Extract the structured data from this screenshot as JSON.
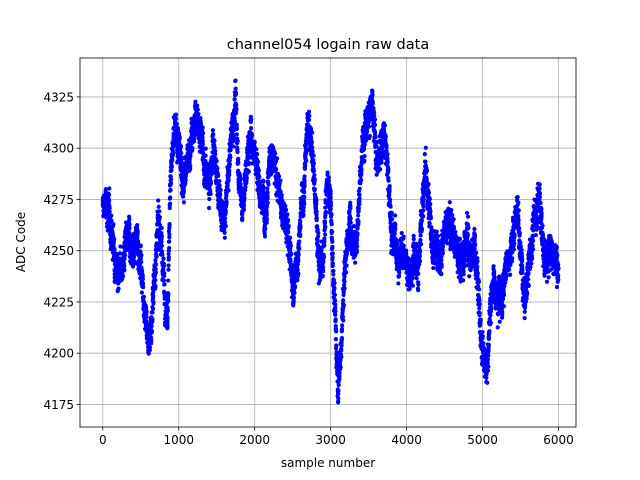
{
  "chart_data": {
    "type": "scatter",
    "title": "channel054 logain raw data",
    "xlabel": "sample number",
    "ylabel": "ADC Code",
    "xlim": [
      -300,
      6230
    ],
    "ylim": [
      4164,
      4344
    ],
    "xticks": [
      0,
      1000,
      2000,
      3000,
      4000,
      5000,
      6000
    ],
    "yticks": [
      4175,
      4200,
      4225,
      4250,
      4275,
      4300,
      4325
    ],
    "grid": true,
    "n_points": 6000,
    "marker_color": "#0000ff",
    "trend": [
      [
        0,
        4270
      ],
      [
        50,
        4272
      ],
      [
        100,
        4263
      ],
      [
        150,
        4250
      ],
      [
        200,
        4243
      ],
      [
        250,
        4240
      ],
      [
        300,
        4250
      ],
      [
        350,
        4255
      ],
      [
        400,
        4250
      ],
      [
        450,
        4255
      ],
      [
        500,
        4245
      ],
      [
        550,
        4225
      ],
      [
        600,
        4205
      ],
      [
        650,
        4218
      ],
      [
        700,
        4250
      ],
      [
        750,
        4265
      ],
      [
        800,
        4238
      ],
      [
        850,
        4220
      ],
      [
        900,
        4295
      ],
      [
        950,
        4305
      ],
      [
        1000,
        4300
      ],
      [
        1050,
        4285
      ],
      [
        1100,
        4288
      ],
      [
        1150,
        4300
      ],
      [
        1200,
        4310
      ],
      [
        1250,
        4318
      ],
      [
        1300,
        4302
      ],
      [
        1350,
        4290
      ],
      [
        1400,
        4282
      ],
      [
        1450,
        4300
      ],
      [
        1500,
        4288
      ],
      [
        1550,
        4270
      ],
      [
        1600,
        4262
      ],
      [
        1650,
        4285
      ],
      [
        1700,
        4310
      ],
      [
        1750,
        4320
      ],
      [
        1800,
        4282
      ],
      [
        1850,
        4272
      ],
      [
        1900,
        4295
      ],
      [
        1950,
        4305
      ],
      [
        2000,
        4300
      ],
      [
        2050,
        4285
      ],
      [
        2100,
        4275
      ],
      [
        2150,
        4272
      ],
      [
        2200,
        4298
      ],
      [
        2250,
        4290
      ],
      [
        2300,
        4285
      ],
      [
        2350,
        4270
      ],
      [
        2400,
        4265
      ],
      [
        2450,
        4255
      ],
      [
        2500,
        4232
      ],
      [
        2550,
        4240
      ],
      [
        2600,
        4262
      ],
      [
        2650,
        4282
      ],
      [
        2700,
        4316
      ],
      [
        2750,
        4300
      ],
      [
        2800,
        4275
      ],
      [
        2850,
        4245
      ],
      [
        2900,
        4240
      ],
      [
        2950,
        4282
      ],
      [
        3000,
        4275
      ],
      [
        3050,
        4225
      ],
      [
        3100,
        4185
      ],
      [
        3150,
        4212
      ],
      [
        3200,
        4250
      ],
      [
        3250,
        4265
      ],
      [
        3300,
        4255
      ],
      [
        3350,
        4260
      ],
      [
        3400,
        4290
      ],
      [
        3450,
        4312
      ],
      [
        3500,
        4320
      ],
      [
        3550,
        4318
      ],
      [
        3600,
        4295
      ],
      [
        3650,
        4295
      ],
      [
        3700,
        4312
      ],
      [
        3750,
        4292
      ],
      [
        3800,
        4258
      ],
      [
        3850,
        4255
      ],
      [
        3900,
        4245
      ],
      [
        3950,
        4252
      ],
      [
        4000,
        4243
      ],
      [
        4050,
        4240
      ],
      [
        4100,
        4250
      ],
      [
        4150,
        4242
      ],
      [
        4200,
        4265
      ],
      [
        4250,
        4290
      ],
      [
        4300,
        4270
      ],
      [
        4350,
        4250
      ],
      [
        4400,
        4255
      ],
      [
        4450,
        4245
      ],
      [
        4500,
        4262
      ],
      [
        4550,
        4265
      ],
      [
        4600,
        4262
      ],
      [
        4650,
        4255
      ],
      [
        4700,
        4242
      ],
      [
        4750,
        4250
      ],
      [
        4800,
        4262
      ],
      [
        4850,
        4240
      ],
      [
        4900,
        4250
      ],
      [
        4950,
        4225
      ],
      [
        5000,
        4205
      ],
      [
        5050,
        4190
      ],
      [
        5100,
        4220
      ],
      [
        5150,
        4235
      ],
      [
        5200,
        4232
      ],
      [
        5250,
        4225
      ],
      [
        5300,
        4240
      ],
      [
        5350,
        4250
      ],
      [
        5400,
        4255
      ],
      [
        5450,
        4270
      ],
      [
        5500,
        4250
      ],
      [
        5550,
        4225
      ],
      [
        5600,
        4240
      ],
      [
        5650,
        4255
      ],
      [
        5700,
        4270
      ],
      [
        5750,
        4278
      ],
      [
        5800,
        4250
      ],
      [
        5850,
        4245
      ],
      [
        5900,
        4252
      ],
      [
        5950,
        4245
      ]
    ]
  }
}
